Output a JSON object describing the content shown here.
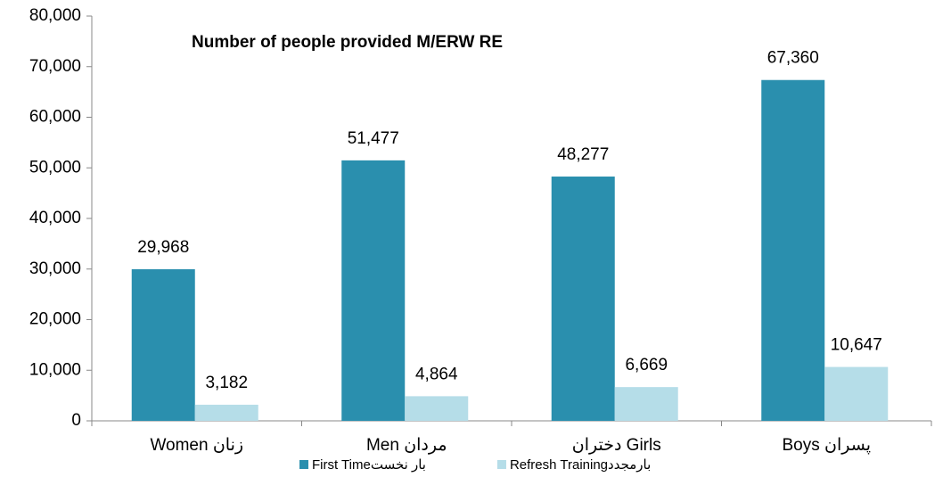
{
  "chart_data": {
    "type": "bar",
    "title": "Number of people provided M/ERW RE",
    "categories": [
      "Women زنان",
      "Men مردان",
      "دختران Girls",
      "Boys  پسران"
    ],
    "series": [
      {
        "name": "First Timeبار نخست",
        "color": "#2a8fae",
        "values": [
          29968,
          51477,
          48277,
          67360
        ],
        "value_labels": [
          "29,968",
          "51,477",
          "48,277",
          "67,360"
        ]
      },
      {
        "name": "Refresh Trainingبارمجدد",
        "color": "#b5dde8",
        "values": [
          3182,
          4864,
          6669,
          10647
        ],
        "value_labels": [
          "3,182",
          "4,864",
          "6,669",
          "10,647"
        ]
      }
    ],
    "ylim": [
      0,
      80000
    ],
    "yticks": [
      0,
      {
        "value": 10000,
        "label": "10,000"
      },
      {
        "value": 20000,
        "label": "20,000"
      },
      {
        "value": 30000,
        "label": "30,000"
      },
      {
        "value": 40000,
        "label": "40,000"
      },
      {
        "value": 50000,
        "label": "50,000"
      },
      {
        "value": 60000,
        "label": "60,000"
      },
      {
        "value": 70000,
        "label": "70,000"
      },
      {
        "value": 80000,
        "label": "80,000"
      }
    ],
    "grid": false
  }
}
